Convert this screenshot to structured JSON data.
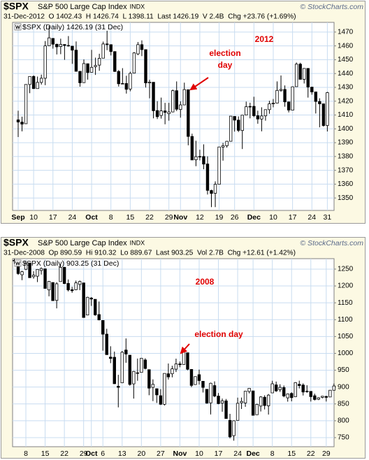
{
  "chart_data": [
    {
      "type": "candlestick",
      "symbol": "$SPX",
      "name": "S&P 500 Large Cap Index",
      "exchange": "INDX",
      "source": "© StockCharts.com",
      "info": "31-Dec-2012  O 1402.43  H 1426.74  L 1398.11  Last 1426.19  V 2.4B  Chg +23.76 (+1.69%)",
      "legend_label": "$SPX (Daily) 1426.19 (31 Dec)",
      "year_label": "2012",
      "annotation_lines": [
        "election",
        "day"
      ],
      "up_color": "#ffffff",
      "down_color": "#000000",
      "grid": true,
      "grid_color": "#c8dcf0",
      "categories": [
        "Sep",
        null,
        null,
        null,
        "10",
        null,
        null,
        null,
        null,
        "17",
        null,
        null,
        null,
        null,
        "24",
        null,
        null,
        null,
        null,
        "Oct",
        null,
        null,
        null,
        null,
        "8",
        null,
        null,
        null,
        null,
        "15",
        null,
        null,
        null,
        null,
        "22",
        null,
        null,
        null,
        null,
        "29",
        null,
        null,
        "Nov",
        null,
        null,
        null,
        null,
        "12",
        null,
        null,
        null,
        null,
        "19",
        null,
        null,
        null,
        "26",
        null,
        null,
        null,
        null,
        "Dec",
        null,
        null,
        null,
        null,
        "10",
        null,
        null,
        null,
        null,
        "17",
        null,
        null,
        null,
        null,
        "24",
        null,
        null,
        null,
        "31"
      ],
      "ohlc": [
        [
          1406.5,
          1413.1,
          1394.1,
          1404.9
        ],
        [
          1404.9,
          1408.8,
          1398.2,
          1403.4
        ],
        [
          1403.7,
          1432.1,
          1403.7,
          1432.1
        ],
        [
          1432.1,
          1437.9,
          1425.8,
          1437.9
        ],
        [
          1437.9,
          1438.7,
          1428.9,
          1429.1
        ],
        [
          1429.1,
          1437.8,
          1429.1,
          1433.6
        ],
        [
          1433.6,
          1439.2,
          1432.0,
          1436.6
        ],
        [
          1436.6,
          1463.5,
          1431.6,
          1460.0
        ],
        [
          1460.1,
          1474.5,
          1460.1,
          1465.8
        ],
        [
          1465.4,
          1465.6,
          1458.0,
          1461.2
        ],
        [
          1461.2,
          1461.5,
          1453.8,
          1459.3
        ],
        [
          1459.5,
          1465.2,
          1454.0,
          1461.1
        ],
        [
          1461.0,
          1461.2,
          1449.9,
          1460.3
        ],
        [
          1460.3,
          1467.1,
          1459.5,
          1460.2
        ],
        [
          1459.8,
          1460.0,
          1447.0,
          1456.9
        ],
        [
          1456.9,
          1463.2,
          1441.6,
          1441.6
        ],
        [
          1441.6,
          1441.6,
          1430.5,
          1433.3
        ],
        [
          1433.4,
          1450.2,
          1433.4,
          1447.2
        ],
        [
          1447.1,
          1447.1,
          1435.6,
          1440.7
        ],
        [
          1440.9,
          1457.1,
          1440.9,
          1444.5
        ],
        [
          1444.99,
          1451.5,
          1439.0,
          1445.8
        ],
        [
          1446.1,
          1454.3,
          1441.99,
          1451.0
        ],
        [
          1451.1,
          1463.1,
          1451.1,
          1461.4
        ],
        [
          1461.4,
          1470.96,
          1456.9,
          1460.9
        ],
        [
          1460.9,
          1460.9,
          1453.1,
          1455.9
        ],
        [
          1455.9,
          1455.9,
          1441.2,
          1441.5
        ],
        [
          1441.5,
          1442.5,
          1430.6,
          1432.6
        ],
        [
          1432.8,
          1443.9,
          1432.8,
          1432.8
        ],
        [
          1432.8,
          1438.4,
          1425.5,
          1428.6
        ],
        [
          1428.8,
          1441.3,
          1427.2,
          1440.1
        ],
        [
          1440.3,
          1455.5,
          1440.3,
          1454.9
        ],
        [
          1454.2,
          1462.8,
          1453.3,
          1460.9
        ],
        [
          1460.9,
          1464.0,
          1452.6,
          1457.3
        ],
        [
          1457.3,
          1457.3,
          1429.9,
          1433.2
        ],
        [
          1433.2,
          1435.5,
          1422.1,
          1433.8
        ],
        [
          1433.7,
          1433.7,
          1407.6,
          1413.1
        ],
        [
          1413.2,
          1420.0,
          1407.1,
          1408.8
        ],
        [
          1409.7,
          1422.6,
          1407.4,
          1413.0
        ],
        [
          1412.97,
          1418.8,
          1403.3,
          1411.9
        ],
        [
          1410.99,
          1418.8,
          1405.9,
          1412.2
        ],
        [
          1412.2,
          1428.4,
          1412.2,
          1427.6
        ],
        [
          1427.6,
          1434.3,
          1412.9,
          1414.2
        ],
        [
          1414.0,
          1419.9,
          1408.1,
          1417.3
        ],
        [
          1417.3,
          1433.4,
          1417.3,
          1428.4
        ],
        [
          1428.3,
          1428.3,
          1388.1,
          1394.5
        ],
        [
          1394.5,
          1396.5,
          1377.5,
          1377.5
        ],
        [
          1377.6,
          1391.4,
          1373.0,
          1379.9
        ],
        [
          1379.9,
          1384.9,
          1377.2,
          1380.0
        ],
        [
          1380.0,
          1388.8,
          1370.8,
          1374.5
        ],
        [
          1374.6,
          1380.1,
          1352.5,
          1355.5
        ],
        [
          1355.4,
          1356.0,
          1343.4,
          1353.3
        ],
        [
          1353.4,
          1362.0,
          1343.4,
          1359.9
        ],
        [
          1359.9,
          1386.9,
          1359.9,
          1386.9
        ],
        [
          1386.8,
          1389.8,
          1377.0,
          1387.8
        ],
        [
          1387.8,
          1391.3,
          1386.4,
          1391.0
        ],
        [
          1391.0,
          1409.2,
          1391.0,
          1409.2
        ],
        [
          1409.0,
          1409.0,
          1398.0,
          1406.3
        ],
        [
          1406.3,
          1409.0,
          1397.7,
          1398.9
        ],
        [
          1398.8,
          1410.0,
          1385.4,
          1409.9
        ],
        [
          1409.96,
          1419.7,
          1409.96,
          1416.0
        ],
        [
          1416.0,
          1418.9,
          1407.6,
          1416.2
        ],
        [
          1416.3,
          1423.2,
          1408.5,
          1409.5
        ],
        [
          1409.5,
          1413.1,
          1403.7,
          1407.1
        ],
        [
          1407.1,
          1415.6,
          1398.2,
          1409.3
        ],
        [
          1409.4,
          1413.9,
          1405.9,
          1413.9
        ],
        [
          1413.9,
          1420.3,
          1410.9,
          1418.1
        ],
        [
          1418.1,
          1421.6,
          1415.6,
          1418.6
        ],
        [
          1418.6,
          1434.3,
          1418.6,
          1427.8
        ],
        [
          1427.8,
          1438.6,
          1426.8,
          1428.5
        ],
        [
          1428.5,
          1431.4,
          1416.0,
          1419.5
        ],
        [
          1419.5,
          1419.5,
          1411.9,
          1413.6
        ],
        [
          1413.5,
          1430.7,
          1413.5,
          1430.4
        ],
        [
          1430.5,
          1448.0,
          1430.5,
          1446.8
        ],
        [
          1446.8,
          1447.8,
          1435.8,
          1435.8
        ],
        [
          1435.8,
          1443.7,
          1432.8,
          1443.7
        ],
        [
          1443.7,
          1443.7,
          1422.6,
          1430.2
        ],
        [
          1430.2,
          1430.2,
          1424.7,
          1426.7
        ],
        [
          1426.7,
          1426.7,
          1411.1,
          1419.8
        ],
        [
          1419.8,
          1422.1,
          1401.1,
          1418.1
        ],
        [
          1418.1,
          1418.1,
          1401.6,
          1402.4
        ],
        [
          1402.43,
          1426.74,
          1398.11,
          1426.19
        ]
      ],
      "ylim": [
        1341,
        1477
      ],
      "yticks": [
        1350,
        1360,
        1370,
        1380,
        1390,
        1400,
        1410,
        1420,
        1430,
        1440,
        1450,
        1460,
        1470
      ]
    },
    {
      "type": "candlestick",
      "symbol": "$SPX",
      "name": "S&P 500 Large Cap Index",
      "exchange": "INDX",
      "source": "© StockCharts.com",
      "info": "31-Dec-2008  Op 890.59  Hi 910.32  Lo 889.67  Last 903.25  Vol 2.7B  Chg +12.61 (+1.42%)",
      "legend_label": "$SPX (Daily) 903.25 (31 Dec)",
      "year_label": "2008",
      "annotation_lines": [
        "election day"
      ],
      "up_color": "#ffffff",
      "down_color": "#000000",
      "grid": true,
      "grid_color": "#c8dcf0",
      "categories": [
        null,
        null,
        null,
        "8",
        null,
        null,
        null,
        null,
        "15",
        null,
        null,
        null,
        null,
        "22",
        null,
        null,
        null,
        null,
        "29",
        null,
        "Oct",
        null,
        null,
        "6",
        null,
        null,
        null,
        null,
        "13",
        null,
        null,
        null,
        null,
        "20",
        null,
        null,
        null,
        null,
        "27",
        null,
        null,
        null,
        null,
        "Nov",
        null,
        null,
        null,
        null,
        "10",
        null,
        null,
        null,
        null,
        "17",
        null,
        null,
        null,
        null,
        "24",
        null,
        null,
        null,
        "Dec",
        null,
        null,
        null,
        null,
        "8",
        null,
        null,
        null,
        null,
        "15",
        null,
        null,
        null,
        null,
        "22",
        null,
        null,
        null,
        "29",
        null,
        null
      ],
      "ohlc": [
        [
          1276.0,
          1280.6,
          1265.6,
          1274.98
        ],
        [
          1271.8,
          1271.8,
          1232.8,
          1236.8
        ],
        [
          1233.2,
          1244.9,
          1217.2,
          1242.3
        ],
        [
          1249.5,
          1274.4,
          1247.1,
          1267.8
        ],
        [
          1267.98,
          1268.7,
          1224.5,
          1224.5
        ],
        [
          1227.5,
          1243.9,
          1221.6,
          1232.0
        ],
        [
          1229.0,
          1249.98,
          1211.5,
          1249.1
        ],
        [
          1245.9,
          1255.1,
          1233.8,
          1251.7
        ],
        [
          1250.9,
          1250.9,
          1192.7,
          1192.7
        ],
        [
          1188.3,
          1214.8,
          1169.3,
          1213.6
        ],
        [
          1210.3,
          1210.3,
          1155.9,
          1156.4
        ],
        [
          1157.1,
          1211.1,
          1133.5,
          1206.5
        ],
        [
          1213.0,
          1265.1,
          1213.0,
          1255.1
        ],
        [
          1255.4,
          1255.5,
          1205.6,
          1207.1
        ],
        [
          1207.6,
          1219.3,
          1183.8,
          1188.2
        ],
        [
          1188.8,
          1197.4,
          1179.8,
          1185.9
        ],
        [
          1188.8,
          1215.8,
          1187.5,
          1209.2
        ],
        [
          1204.5,
          1215.8,
          1187.5,
          1213.3
        ],
        [
          1209.1,
          1209.1,
          1106.4,
          1106.4
        ],
        [
          1113.8,
          1168.0,
          1113.8,
          1166.4
        ],
        [
          1164.2,
          1167.0,
          1140.8,
          1161.1
        ],
        [
          1160.4,
          1160.4,
          1111.4,
          1114.3
        ],
        [
          1115.2,
          1153.8,
          1098.1,
          1099.2
        ],
        [
          1097.6,
          1097.6,
          1007.97,
          1056.9
        ],
        [
          1057.0,
          1072.9,
          996.2,
          996.2
        ],
        [
          988.9,
          1021.1,
          970.97,
          984.9
        ],
        [
          988.4,
          1005.3,
          909.2,
          909.9
        ],
        [
          902.3,
          936.4,
          839.8,
          899.2
        ],
        [
          912.8,
          1006.9,
          912.8,
          1003.4
        ],
        [
          1009.97,
          1044.3,
          972.1,
          998.0
        ],
        [
          994.6,
          994.6,
          903.99,
          907.8
        ],
        [
          909.5,
          947.7,
          865.8,
          946.4
        ],
        [
          942.3,
          984.6,
          918.7,
          940.6
        ],
        [
          943.5,
          985.4,
          943.5,
          985.4
        ],
        [
          980.4,
          985.4,
          952.5,
          955.1
        ],
        [
          951.7,
          951.7,
          875.8,
          896.8
        ],
        [
          899.1,
          922.8,
          858.4,
          908.1
        ],
        [
          895.1,
          896.1,
          852.9,
          876.8
        ],
        [
          874.3,
          893.8,
          846.8,
          848.9
        ],
        [
          848.9,
          940.5,
          845.3,
          940.5
        ],
        [
          939.5,
          969.97,
          922.3,
          930.1
        ],
        [
          939.4,
          963.2,
          928.9,
          954.1
        ],
        [
          953.1,
          984.4,
          944.6,
          968.8
        ],
        [
          968.7,
          975.6,
          958.8,
          966.3
        ],
        [
          967.0,
          1007.5,
          967.0,
          1005.8
        ],
        [
          1001.8,
          1001.8,
          949.9,
          952.8
        ],
        [
          952.4,
          952.4,
          899.7,
          904.9
        ],
        [
          907.4,
          931.5,
          906.4,
          930.99
        ],
        [
          936.8,
          951.9,
          907.5,
          919.2
        ],
        [
          917.2,
          917.2,
          883.9,
          898.95
        ],
        [
          893.4,
          893.4,
          850.5,
          852.3
        ],
        [
          853.1,
          913.0,
          818.7,
          911.3
        ],
        [
          904.4,
          916.9,
          869.9,
          873.3
        ],
        [
          873.2,
          882.3,
          848.98,
          850.75
        ],
        [
          852.3,
          865.9,
          826.8,
          859.1
        ],
        [
          859.0,
          864.6,
          806.2,
          806.6
        ],
        [
          801.2,
          820.5,
          747.8,
          752.4
        ],
        [
          755.8,
          801.2,
          741.0,
          800.0
        ],
        [
          801.2,
          868.6,
          801.2,
          851.8
        ],
        [
          853.4,
          868.9,
          834.99,
          857.4
        ],
        [
          852.9,
          887.7,
          841.4,
          887.7
        ],
        [
          886.9,
          896.3,
          881.2,
          896.2
        ],
        [
          888.6,
          888.6,
          815.7,
          816.2
        ],
        [
          817.9,
          850.5,
          817.9,
          848.8
        ],
        [
          843.6,
          873.1,
          827.6,
          870.7
        ],
        [
          869.8,
          875.6,
          833.6,
          845.2
        ],
        [
          844.4,
          879.4,
          818.4,
          876.1
        ],
        [
          882.7,
          918.6,
          882.7,
          909.7
        ],
        [
          906.5,
          916.3,
          885.4,
          888.7
        ],
        [
          892.2,
          908.3,
          885.5,
          899.2
        ],
        [
          898.4,
          904.6,
          869.7,
          873.6
        ],
        [
          868.0,
          881.0,
          856.7,
          879.7
        ],
        [
          881.1,
          884.6,
          857.7,
          868.6
        ],
        [
          871.5,
          914.7,
          871.5,
          913.2
        ],
        [
          908.2,
          918.9,
          895.9,
          904.4
        ],
        [
          905.98,
          911.0,
          875.0,
          885.3
        ],
        [
          886.96,
          905.5,
          883.0,
          887.9
        ],
        [
          887.2,
          887.4,
          857.1,
          871.6
        ],
        [
          874.3,
          880.4,
          860.1,
          863.2
        ],
        [
          863.9,
          869.8,
          861.4,
          868.2
        ],
        [
          869.5,
          873.7,
          866.5,
          872.8
        ],
        [
          872.4,
          873.7,
          857.1,
          869.4
        ],
        [
          870.6,
          891.1,
          870.6,
          890.6
        ],
        [
          890.59,
          910.32,
          889.67,
          903.25
        ]
      ],
      "ylim": [
        723,
        1281
      ],
      "yticks": [
        750,
        800,
        850,
        900,
        950,
        1000,
        1050,
        1100,
        1150,
        1200,
        1250
      ]
    }
  ]
}
